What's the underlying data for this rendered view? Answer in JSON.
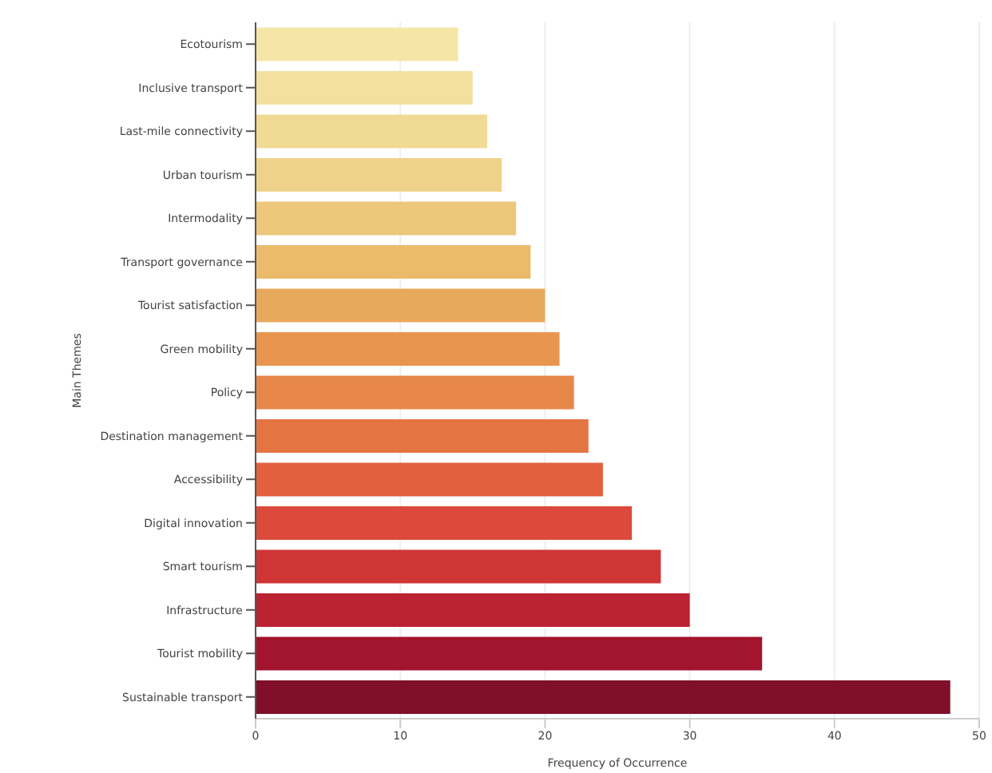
{
  "chart_data": {
    "type": "bar",
    "orientation": "horizontal",
    "xlabel": "Frequency of Occurrence",
    "ylabel": "Main Themes",
    "categories": [
      "Ecotourism",
      "Inclusive transport",
      "Last-mile connectivity",
      "Urban tourism",
      "Intermodality",
      "Transport governance",
      "Tourist satisfaction",
      "Green mobility",
      "Policy",
      "Destination management",
      "Accessibility",
      "Digital innovation",
      "Smart tourism",
      "Infrastructure",
      "Tourist mobility",
      "Sustainable transport"
    ],
    "values": [
      14,
      15,
      16,
      17,
      18,
      19,
      20,
      21,
      22,
      23,
      24,
      26,
      28,
      30,
      35,
      48
    ],
    "colors": [
      "#f5e6a8",
      "#f3e09e",
      "#f1da94",
      "#efd28a",
      "#edc77a",
      "#ebbb6b",
      "#e9a95d",
      "#e8964f",
      "#e7874a",
      "#e57443",
      "#e2603e",
      "#db4a3a",
      "#cf3535",
      "#bb2232",
      "#a3142f",
      "#800f2a"
    ],
    "xlim": [
      0,
      50
    ],
    "xticks": [
      0,
      10,
      20,
      30,
      40,
      50
    ],
    "grid": "x"
  }
}
